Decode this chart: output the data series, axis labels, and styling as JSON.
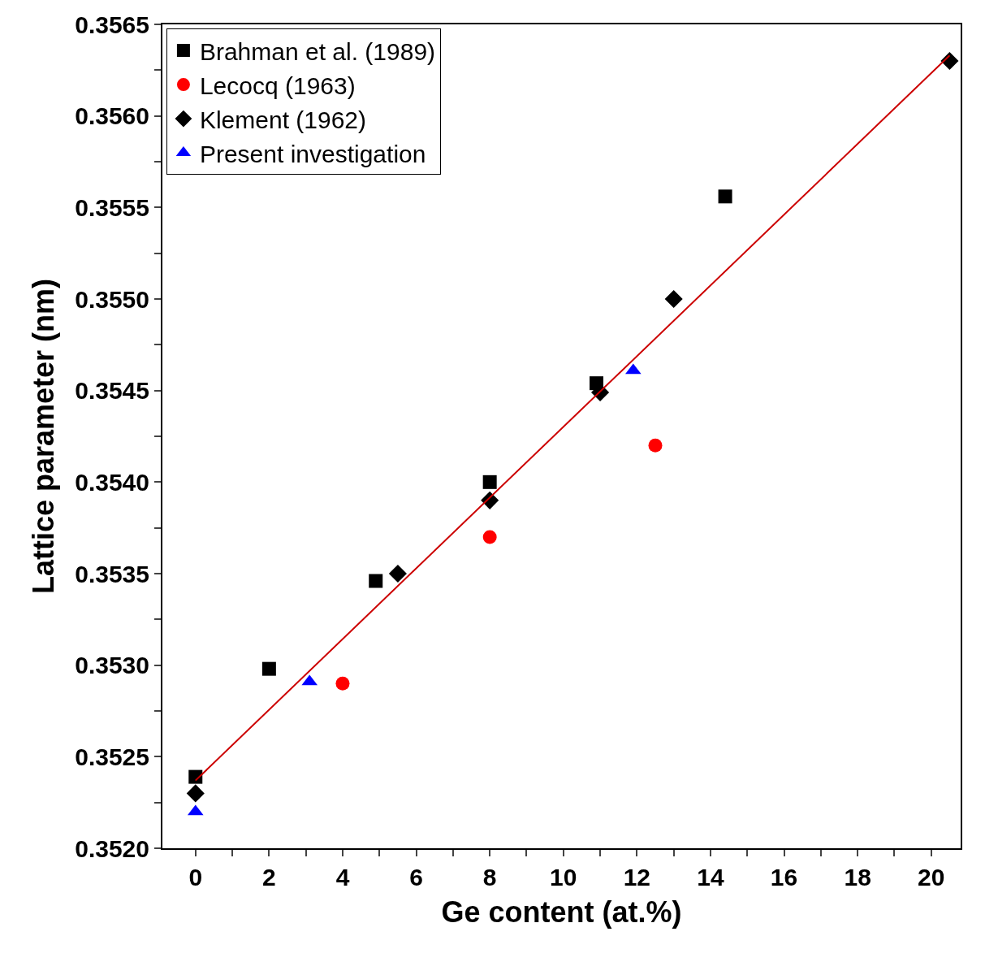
{
  "chart_data": {
    "type": "scatter",
    "xlabel": "Ge content (at.%)",
    "ylabel": "Lattice parameter (nm)",
    "xlim": [
      -0.9,
      20.8
    ],
    "ylim": [
      0.352,
      0.3565
    ],
    "xticks": [
      0,
      {
        "value": 1,
        "label": null
      },
      2,
      {
        "value": 3,
        "label": null
      },
      4,
      {
        "value": 5,
        "label": null
      },
      6,
      {
        "value": 7,
        "label": null
      },
      8,
      {
        "value": 9,
        "label": null
      },
      10,
      {
        "value": 11,
        "label": null
      },
      12,
      {
        "value": 13,
        "label": null
      },
      14,
      {
        "value": 15,
        "label": null
      },
      16,
      {
        "value": 17,
        "label": null
      },
      18,
      {
        "value": 19,
        "label": null
      },
      20
    ],
    "yticks": [
      {
        "value": 0.352,
        "label": "0.3520"
      },
      {
        "value": 0.35225,
        "label": null
      },
      {
        "value": 0.3525,
        "label": "0.3525"
      },
      {
        "value": 0.35275,
        "label": null
      },
      {
        "value": 0.353,
        "label": "0.3530"
      },
      {
        "value": 0.35325,
        "label": null
      },
      {
        "value": 0.3535,
        "label": "0.3535"
      },
      {
        "value": 0.35375,
        "label": null
      },
      {
        "value": 0.354,
        "label": "0.3540"
      },
      {
        "value": 0.35425,
        "label": null
      },
      {
        "value": 0.3545,
        "label": "0.3545"
      },
      {
        "value": 0.35475,
        "label": null
      },
      {
        "value": 0.355,
        "label": "0.3550"
      },
      {
        "value": 0.35525,
        "label": null
      },
      {
        "value": 0.3555,
        "label": "0.3555"
      },
      {
        "value": 0.35575,
        "label": null
      },
      {
        "value": 0.356,
        "label": "0.3560"
      },
      {
        "value": 0.35625,
        "label": null
      },
      {
        "value": 0.3565,
        "label": "0.3565"
      }
    ],
    "legend": "top left",
    "series": [
      {
        "name": "Brahman et al. (1989)",
        "color": "#000000",
        "marker": "square",
        "x": [
          0,
          2,
          4.9,
          8,
          10.9,
          14.4
        ],
        "values": [
          0.35239,
          0.35298,
          0.35346,
          0.354,
          0.35454,
          0.35556
        ]
      },
      {
        "name": "Lecocq (1963)",
        "color": "#ff0000",
        "marker": "circle",
        "x": [
          4,
          8,
          12.5
        ],
        "values": [
          0.3529,
          0.3537,
          0.3542
        ]
      },
      {
        "name": "Klement (1962)",
        "color": "#000000",
        "marker": "diamond",
        "x": [
          0,
          5.5,
          8,
          11,
          13,
          20.5
        ],
        "values": [
          0.3523,
          0.3535,
          0.3539,
          0.35449,
          0.355,
          0.3563
        ]
      },
      {
        "name": "Present investigation",
        "color": "#0000ff",
        "marker": "triangle",
        "x": [
          0,
          3.1,
          11.9
        ],
        "values": [
          0.3522,
          0.35291,
          0.35461
        ]
      },
      {
        "type": "line",
        "color": "#cc0000",
        "line_style": "solid",
        "x": [
          0,
          20.5
        ],
        "values": [
          0.35237,
          0.35633
        ]
      }
    ]
  }
}
